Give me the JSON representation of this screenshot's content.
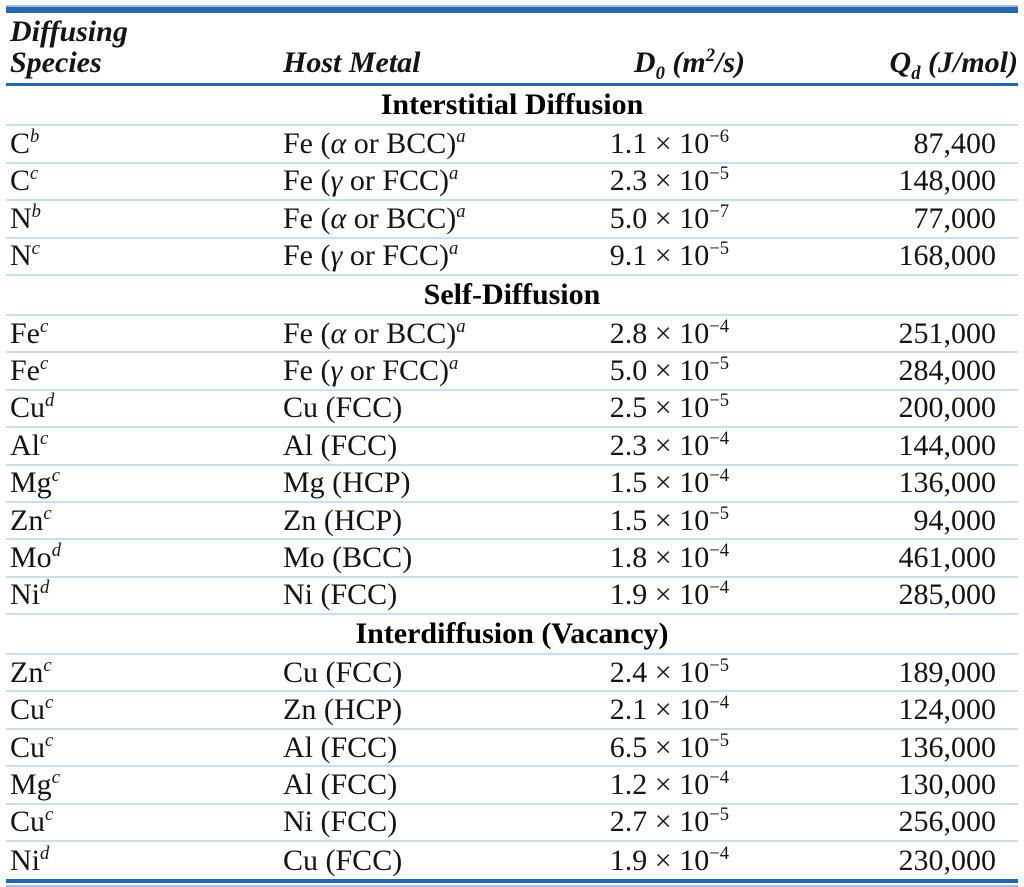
{
  "page": {
    "accent_dark": "#2765ae",
    "accent_mid": "#9fc0e2",
    "accent_light": "#cadeef",
    "text_color": "#141414"
  },
  "header": {
    "col1_line1": "Diffusing",
    "col1_line2": "Species",
    "col2": "Host Metal",
    "d0": {
      "sym": "D",
      "sub": "0",
      "unit_pre": " (m",
      "unit_sup": "2",
      "unit_post": "/s)"
    },
    "qd": {
      "sym": "Q",
      "sub": "d",
      "unit": " (J/mol)"
    }
  },
  "sections": [
    {
      "title": "Interstitial Diffusion",
      "rows": [
        {
          "species": "C",
          "species_note": "b",
          "host": "Fe (α or BCC)",
          "host_note": "a",
          "d0_pre": "1.1 × 10",
          "d0_exp": "−6",
          "qd": "87,400"
        },
        {
          "species": "C",
          "species_note": "c",
          "host": "Fe (γ or FCC)",
          "host_note": "a",
          "d0_pre": "2.3 × 10",
          "d0_exp": "−5",
          "qd": "148,000"
        },
        {
          "species": "N",
          "species_note": "b",
          "host": "Fe (α or BCC)",
          "host_note": "a",
          "d0_pre": "5.0 × 10",
          "d0_exp": "−7",
          "qd": "77,000"
        },
        {
          "species": "N",
          "species_note": "c",
          "host": "Fe (γ or FCC)",
          "host_note": "a",
          "d0_pre": "9.1 × 10",
          "d0_exp": "−5",
          "qd": "168,000"
        }
      ]
    },
    {
      "title": "Self-Diffusion",
      "rows": [
        {
          "species": "Fe",
          "species_note": "c",
          "host": "Fe (α or BCC)",
          "host_note": "a",
          "d0_pre": "2.8 × 10",
          "d0_exp": "−4",
          "qd": "251,000"
        },
        {
          "species": "Fe",
          "species_note": "c",
          "host": "Fe (γ or FCC)",
          "host_note": "a",
          "d0_pre": "5.0 × 10",
          "d0_exp": "−5",
          "qd": "284,000"
        },
        {
          "species": "Cu",
          "species_note": "d",
          "host": "Cu (FCC)",
          "host_note": "",
          "d0_pre": "2.5 × 10",
          "d0_exp": "−5",
          "qd": "200,000"
        },
        {
          "species": "Al",
          "species_note": "c",
          "host": "Al (FCC)",
          "host_note": "",
          "d0_pre": "2.3 × 10",
          "d0_exp": "−4",
          "qd": "144,000"
        },
        {
          "species": "Mg",
          "species_note": "c",
          "host": "Mg (HCP)",
          "host_note": "",
          "d0_pre": "1.5 × 10",
          "d0_exp": "−4",
          "qd": "136,000"
        },
        {
          "species": "Zn",
          "species_note": "c",
          "host": "Zn (HCP)",
          "host_note": "",
          "d0_pre": "1.5 × 10",
          "d0_exp": "−5",
          "qd": "94,000"
        },
        {
          "species": "Mo",
          "species_note": "d",
          "host": "Mo (BCC)",
          "host_note": "",
          "d0_pre": "1.8 × 10",
          "d0_exp": "−4",
          "qd": "461,000"
        },
        {
          "species": "Ni",
          "species_note": "d",
          "host": "Ni (FCC)",
          "host_note": "",
          "d0_pre": "1.9 × 10",
          "d0_exp": "−4",
          "qd": "285,000"
        }
      ]
    },
    {
      "title": "Interdiffusion (Vacancy)",
      "rows": [
        {
          "species": "Zn",
          "species_note": "c",
          "host": "Cu (FCC)",
          "host_note": "",
          "d0_pre": "2.4 × 10",
          "d0_exp": "−5",
          "qd": "189,000"
        },
        {
          "species": "Cu",
          "species_note": "c",
          "host": "Zn (HCP)",
          "host_note": "",
          "d0_pre": "2.1 × 10",
          "d0_exp": "−4",
          "qd": "124,000"
        },
        {
          "species": "Cu",
          "species_note": "c",
          "host": "Al (FCC)",
          "host_note": "",
          "d0_pre": "6.5 × 10",
          "d0_exp": "−5",
          "qd": "136,000"
        },
        {
          "species": "Mg",
          "species_note": "c",
          "host": "Al (FCC)",
          "host_note": "",
          "d0_pre": "1.2 × 10",
          "d0_exp": "−4",
          "qd": "130,000"
        },
        {
          "species": "Cu",
          "species_note": "c",
          "host": "Ni (FCC)",
          "host_note": "",
          "d0_pre": "2.7 × 10",
          "d0_exp": "−5",
          "qd": "256,000"
        },
        {
          "species": "Ni",
          "species_note": "d",
          "host": "Cu (FCC)",
          "host_note": "",
          "d0_pre": "1.9 × 10",
          "d0_exp": "−4",
          "qd": "230,000"
        }
      ]
    }
  ]
}
